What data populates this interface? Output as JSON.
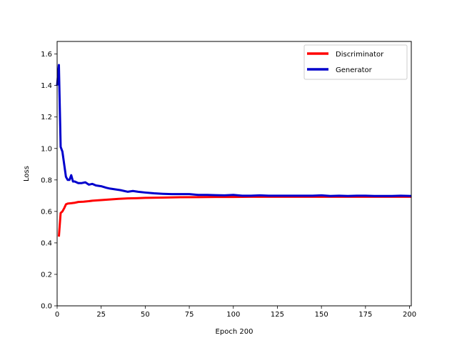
{
  "chart_data": {
    "type": "line",
    "title": "",
    "xlabel": "Epoch 200",
    "ylabel": "Loss",
    "xlim": [
      0,
      201
    ],
    "ylim": [
      0.0,
      1.68
    ],
    "x_ticks": [
      0,
      25,
      50,
      75,
      100,
      125,
      150,
      175,
      200
    ],
    "y_ticks": [
      0.0,
      0.2,
      0.4,
      0.6,
      0.8,
      1.0,
      1.2,
      1.4,
      1.6
    ],
    "x_tick_labels": [
      "0",
      "25",
      "50",
      "75",
      "100",
      "125",
      "150",
      "175",
      "200"
    ],
    "y_tick_labels": [
      "0.0",
      "0.2",
      "0.4",
      "0.6",
      "0.8",
      "1.0",
      "1.2",
      "1.4",
      "1.6"
    ],
    "grid": false,
    "legend_position": "top-right",
    "legend": [
      "Discriminator",
      "Generator"
    ],
    "series": [
      {
        "name": "Discriminator",
        "color": "#ff0000",
        "points": [
          [
            1,
            0.44
          ],
          [
            2,
            0.59
          ],
          [
            3,
            0.6
          ],
          [
            4,
            0.62
          ],
          [
            5,
            0.645
          ],
          [
            6,
            0.65
          ],
          [
            8,
            0.652
          ],
          [
            10,
            0.655
          ],
          [
            12,
            0.66
          ],
          [
            15,
            0.662
          ],
          [
            18,
            0.665
          ],
          [
            20,
            0.668
          ],
          [
            25,
            0.672
          ],
          [
            30,
            0.676
          ],
          [
            35,
            0.68
          ],
          [
            40,
            0.683
          ],
          [
            45,
            0.684
          ],
          [
            50,
            0.686
          ],
          [
            60,
            0.688
          ],
          [
            70,
            0.69
          ],
          [
            80,
            0.691
          ],
          [
            90,
            0.692
          ],
          [
            100,
            0.692
          ],
          [
            110,
            0.693
          ],
          [
            120,
            0.693
          ],
          [
            130,
            0.693
          ],
          [
            140,
            0.693
          ],
          [
            150,
            0.693
          ],
          [
            160,
            0.693
          ],
          [
            170,
            0.693
          ],
          [
            180,
            0.693
          ],
          [
            190,
            0.693
          ],
          [
            201,
            0.693
          ]
        ]
      },
      {
        "name": "Generator",
        "color": "#0000cc",
        "points": [
          [
            0,
            1.4
          ],
          [
            1,
            1.53
          ],
          [
            2,
            1.01
          ],
          [
            3,
            0.98
          ],
          [
            4,
            0.9
          ],
          [
            5,
            0.82
          ],
          [
            6,
            0.8
          ],
          [
            7,
            0.8
          ],
          [
            8,
            0.83
          ],
          [
            9,
            0.79
          ],
          [
            10,
            0.79
          ],
          [
            12,
            0.78
          ],
          [
            14,
            0.78
          ],
          [
            16,
            0.785
          ],
          [
            18,
            0.77
          ],
          [
            20,
            0.775
          ],
          [
            22,
            0.765
          ],
          [
            25,
            0.76
          ],
          [
            28,
            0.75
          ],
          [
            30,
            0.745
          ],
          [
            33,
            0.74
          ],
          [
            36,
            0.735
          ],
          [
            40,
            0.725
          ],
          [
            43,
            0.73
          ],
          [
            46,
            0.725
          ],
          [
            50,
            0.72
          ],
          [
            55,
            0.715
          ],
          [
            60,
            0.712
          ],
          [
            65,
            0.71
          ],
          [
            70,
            0.71
          ],
          [
            75,
            0.71
          ],
          [
            80,
            0.705
          ],
          [
            85,
            0.705
          ],
          [
            90,
            0.703
          ],
          [
            95,
            0.702
          ],
          [
            100,
            0.705
          ],
          [
            105,
            0.7
          ],
          [
            110,
            0.7
          ],
          [
            115,
            0.702
          ],
          [
            120,
            0.7
          ],
          [
            125,
            0.7
          ],
          [
            130,
            0.7
          ],
          [
            135,
            0.7
          ],
          [
            140,
            0.7
          ],
          [
            145,
            0.7
          ],
          [
            150,
            0.702
          ],
          [
            155,
            0.698
          ],
          [
            160,
            0.7
          ],
          [
            165,
            0.698
          ],
          [
            170,
            0.7
          ],
          [
            175,
            0.7
          ],
          [
            180,
            0.698
          ],
          [
            185,
            0.698
          ],
          [
            190,
            0.698
          ],
          [
            195,
            0.7
          ],
          [
            201,
            0.698
          ]
        ]
      }
    ]
  }
}
